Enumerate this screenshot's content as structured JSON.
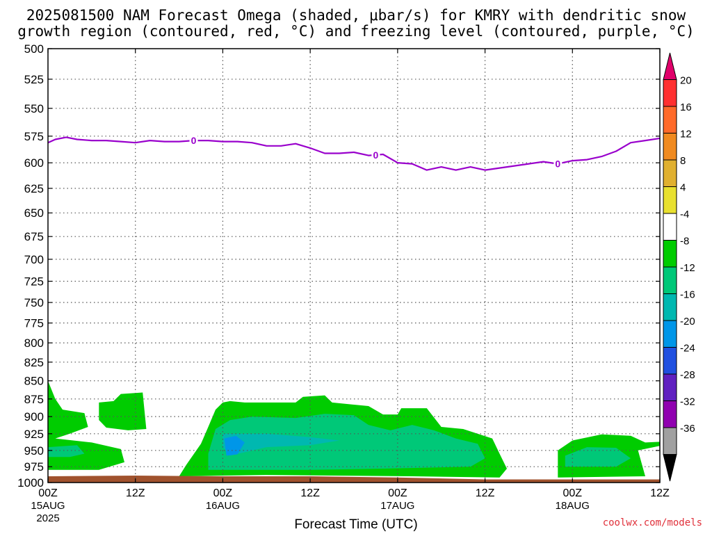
{
  "title": {
    "line1": "2025081500 NAM Forecast Omega (shaded, μbar/s) for KMRY with dendritic snow",
    "line2": "growth region (contoured, red, °C) and freezing level (contoured, purple, °C)"
  },
  "credit": "coolwx.com/models",
  "colors": {
    "plot_border": "#000000",
    "grid": "#555555",
    "freezing_level": "#9900cc",
    "ground": "#a0522d"
  },
  "chart_data": {
    "type": "contour",
    "xlabel": "Forecast Time (UTC)",
    "ylabel": "",
    "x_range_hours": [
      0,
      84
    ],
    "y_range_hpa": [
      500,
      1000
    ],
    "y_scale": "log-pressure (inverted)",
    "grid": true,
    "x_ticks": [
      {
        "hour": 0,
        "label": "00Z",
        "date": "15AUG",
        "year": "2025"
      },
      {
        "hour": 12,
        "label": "12Z",
        "date": "",
        "year": ""
      },
      {
        "hour": 24,
        "label": "00Z",
        "date": "16AUG",
        "year": ""
      },
      {
        "hour": 36,
        "label": "12Z",
        "date": "",
        "year": ""
      },
      {
        "hour": 48,
        "label": "00Z",
        "date": "17AUG",
        "year": ""
      },
      {
        "hour": 60,
        "label": "12Z",
        "date": "",
        "year": ""
      },
      {
        "hour": 72,
        "label": "00Z",
        "date": "18AUG",
        "year": ""
      },
      {
        "hour": 84,
        "label": "12Z",
        "date": "",
        "year": ""
      }
    ],
    "y_ticks": [
      500,
      525,
      550,
      575,
      600,
      625,
      650,
      675,
      700,
      725,
      750,
      775,
      800,
      825,
      850,
      875,
      900,
      925,
      950,
      975,
      1000
    ],
    "colorbar": {
      "labels": [
        "20",
        "16",
        "12",
        "8",
        "4",
        "-4",
        "-8",
        "-12",
        "-16",
        "-20",
        "-24",
        "-28",
        "-32",
        "-36"
      ],
      "bins": [
        {
          "color": "#e0006a"
        },
        {
          "color": "#ff3030"
        },
        {
          "color": "#ff6a2a"
        },
        {
          "color": "#f08a20"
        },
        {
          "color": "#e0b030"
        },
        {
          "color": "#e8e030"
        },
        {
          "color": "#ffffff"
        },
        {
          "color": "#00cc00"
        },
        {
          "color": "#00c878"
        },
        {
          "color": "#00b8b0"
        },
        {
          "color": "#0096e8"
        },
        {
          "color": "#2050e0"
        },
        {
          "color": "#6020c0"
        },
        {
          "color": "#9000b0"
        },
        {
          "color": "#a0a0a0"
        },
        {
          "color": "#000000"
        }
      ]
    },
    "freezing_level": {
      "label": "0",
      "label_hours": [
        20,
        45,
        70
      ],
      "points": [
        [
          0,
          581
        ],
        [
          1,
          578
        ],
        [
          2.5,
          576
        ],
        [
          4,
          578
        ],
        [
          6,
          579
        ],
        [
          8,
          579
        ],
        [
          10,
          580
        ],
        [
          12,
          581
        ],
        [
          14,
          579
        ],
        [
          16,
          580
        ],
        [
          18,
          580
        ],
        [
          20,
          579
        ],
        [
          22,
          579
        ],
        [
          24,
          580
        ],
        [
          26,
          580
        ],
        [
          28,
          581
        ],
        [
          30,
          584
        ],
        [
          32,
          584
        ],
        [
          34,
          582
        ],
        [
          36,
          586
        ],
        [
          38,
          591
        ],
        [
          40,
          591
        ],
        [
          42,
          590
        ],
        [
          44,
          593
        ],
        [
          46,
          592
        ],
        [
          48,
          600
        ],
        [
          50,
          601
        ],
        [
          52,
          607
        ],
        [
          54,
          604
        ],
        [
          56,
          607
        ],
        [
          58,
          604
        ],
        [
          60,
          607
        ],
        [
          62,
          605
        ],
        [
          64,
          603
        ],
        [
          66,
          601
        ],
        [
          68,
          599
        ],
        [
          70,
          601
        ],
        [
          72,
          598
        ],
        [
          74,
          597
        ],
        [
          76,
          594
        ],
        [
          78,
          589
        ],
        [
          80,
          581
        ],
        [
          82,
          579
        ],
        [
          84,
          577
        ]
      ]
    },
    "omega_regions": [
      {
        "name": "green-west-a",
        "bin": 7,
        "outline": [
          [
            0,
            850
          ],
          [
            1,
            875
          ],
          [
            2,
            890
          ],
          [
            5,
            895
          ],
          [
            5.5,
            915
          ],
          [
            3,
            925
          ],
          [
            1,
            932
          ],
          [
            6,
            938
          ],
          [
            10,
            948
          ],
          [
            10.5,
            968
          ],
          [
            7,
            980
          ],
          [
            0,
            980
          ]
        ]
      },
      {
        "name": "green-west-b",
        "bin": 7,
        "outline": [
          [
            7,
            880
          ],
          [
            9,
            878
          ],
          [
            10,
            868
          ],
          [
            13,
            866
          ],
          [
            13.5,
            918
          ],
          [
            11,
            920
          ],
          [
            8,
            916
          ],
          [
            7,
            905
          ]
        ]
      },
      {
        "name": "green-day2",
        "bin": 7,
        "outline": [
          [
            23,
            890
          ],
          [
            24,
            880
          ],
          [
            25,
            878
          ],
          [
            27,
            880
          ],
          [
            34,
            880
          ],
          [
            35,
            872
          ],
          [
            38,
            870
          ],
          [
            39,
            880
          ],
          [
            44,
            885
          ],
          [
            46,
            897
          ],
          [
            48,
            897
          ],
          [
            48.5,
            888
          ],
          [
            52,
            888
          ],
          [
            54,
            915
          ],
          [
            57,
            918
          ],
          [
            61,
            932
          ],
          [
            62,
            955
          ],
          [
            63,
            978
          ],
          [
            62,
            992
          ],
          [
            50,
            990
          ],
          [
            30,
            988
          ],
          [
            18,
            990
          ],
          [
            19,
            972
          ],
          [
            21,
            940
          ],
          [
            22,
            915
          ]
        ]
      },
      {
        "name": "teal-day2",
        "bin": 8,
        "outline": [
          [
            23,
            918
          ],
          [
            25,
            905
          ],
          [
            28,
            900
          ],
          [
            34,
            902
          ],
          [
            38,
            896
          ],
          [
            42,
            898
          ],
          [
            44,
            912
          ],
          [
            47,
            920
          ],
          [
            50,
            912
          ],
          [
            53,
            920
          ],
          [
            56,
            932
          ],
          [
            59,
            940
          ],
          [
            60,
            962
          ],
          [
            58,
            975
          ],
          [
            46,
            978
          ],
          [
            36,
            980
          ],
          [
            22,
            980
          ],
          [
            22,
            955
          ]
        ]
      },
      {
        "name": "cyan-day2",
        "bin": 9,
        "outline": [
          [
            24,
            925
          ],
          [
            30,
            925
          ],
          [
            36,
            930
          ],
          [
            40,
            935
          ],
          [
            36,
            942
          ],
          [
            30,
            945
          ],
          [
            25,
            958
          ],
          [
            24,
            945
          ]
        ]
      },
      {
        "name": "blue-day2",
        "bin": 10,
        "outline": [
          [
            24.2,
            932
          ],
          [
            25.8,
            928
          ],
          [
            27,
            938
          ],
          [
            26,
            956
          ],
          [
            24.5,
            958
          ]
        ]
      },
      {
        "name": "green-day4",
        "bin": 7,
        "outline": [
          [
            70,
            950
          ],
          [
            72,
            935
          ],
          [
            76,
            926
          ],
          [
            80,
            928
          ],
          [
            82,
            938
          ],
          [
            84,
            937
          ],
          [
            84,
            943
          ],
          [
            81,
            950
          ],
          [
            82,
            990
          ],
          [
            70,
            992
          ]
        ]
      },
      {
        "name": "teal-day4",
        "bin": 8,
        "outline": [
          [
            71,
            958
          ],
          [
            74,
            945
          ],
          [
            78,
            946
          ],
          [
            80,
            962
          ],
          [
            78,
            975
          ],
          [
            71,
            975
          ]
        ]
      },
      {
        "name": "teal-west",
        "bin": 8,
        "outline": [
          [
            0,
            945
          ],
          [
            4,
            942
          ],
          [
            5,
            955
          ],
          [
            3,
            960
          ],
          [
            0,
            960
          ]
        ]
      }
    ],
    "ground": {
      "points": [
        [
          0,
          990
        ],
        [
          12,
          989
        ],
        [
          24,
          990
        ],
        [
          36,
          990
        ],
        [
          48,
          992
        ],
        [
          60,
          995
        ],
        [
          72,
          995
        ],
        [
          84,
          995
        ]
      ]
    }
  }
}
